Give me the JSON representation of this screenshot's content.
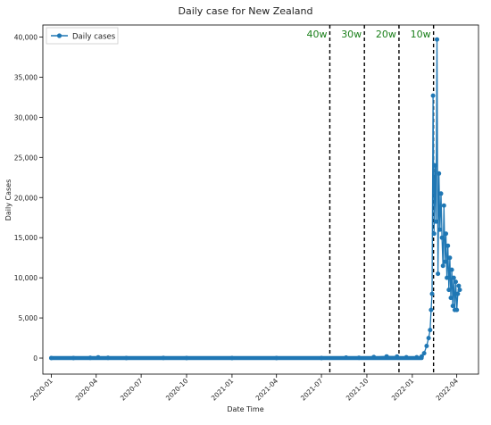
{
  "chart_data": {
    "type": "line",
    "title": "Daily case for New Zealand",
    "xlabel": "Date Time",
    "ylabel": "Daily Cases",
    "x_axis": {
      "type": "date",
      "range": [
        "2019-12-15",
        "2022-05-15"
      ],
      "ticks": [
        "2020-01",
        "2020-04",
        "2020-07",
        "2020-10",
        "2021-01",
        "2021-04",
        "2021-07",
        "2021-10",
        "2022-01",
        "2022-04"
      ]
    },
    "y_axis": {
      "range": [
        -2000,
        41500
      ],
      "ticks": [
        0,
        5000,
        10000,
        15000,
        20000,
        25000,
        30000,
        35000,
        40000
      ],
      "tick_labels": [
        "0",
        "5,000",
        "10,000",
        "15,000",
        "20,000",
        "25,000",
        "30,000",
        "35,000",
        "40,000"
      ]
    },
    "grid": false,
    "legend": {
      "placement": "top-left",
      "entries": [
        "Daily cases"
      ]
    },
    "series": [
      {
        "name": "Daily cases",
        "color": "#1f77b4",
        "marker": "circle",
        "points": [
          [
            "2020-01-01",
            0
          ],
          [
            "2020-02-15",
            0
          ],
          [
            "2020-03-20",
            20
          ],
          [
            "2020-04-05",
            90
          ],
          [
            "2020-04-25",
            20
          ],
          [
            "2020-06-01",
            0
          ],
          [
            "2020-08-15",
            10
          ],
          [
            "2020-10-01",
            5
          ],
          [
            "2021-01-01",
            5
          ],
          [
            "2021-04-01",
            5
          ],
          [
            "2021-07-01",
            5
          ],
          [
            "2021-08-20",
            60
          ],
          [
            "2021-09-15",
            40
          ],
          [
            "2021-10-15",
            120
          ],
          [
            "2021-11-10",
            200
          ],
          [
            "2021-12-01",
            180
          ],
          [
            "2021-12-20",
            100
          ],
          [
            "2022-01-10",
            100
          ],
          [
            "2022-01-20",
            200
          ],
          [
            "2022-01-25",
            600
          ],
          [
            "2022-01-30",
            1500
          ],
          [
            "2022-02-03",
            2500
          ],
          [
            "2022-02-06",
            3500
          ],
          [
            "2022-02-08",
            6000
          ],
          [
            "2022-02-10",
            8000
          ],
          [
            "2022-02-12",
            32700
          ],
          [
            "2022-02-14",
            15500
          ],
          [
            "2022-02-16",
            24000
          ],
          [
            "2022-02-18",
            17000
          ],
          [
            "2022-02-20",
            39700
          ],
          [
            "2022-02-22",
            10500
          ],
          [
            "2022-02-24",
            23000
          ],
          [
            "2022-02-26",
            16000
          ],
          [
            "2022-02-28",
            20500
          ],
          [
            "2022-03-02",
            15000
          ],
          [
            "2022-03-04",
            11500
          ],
          [
            "2022-03-06",
            19000
          ],
          [
            "2022-03-08",
            12000
          ],
          [
            "2022-03-10",
            15500
          ],
          [
            "2022-03-12",
            10000
          ],
          [
            "2022-03-14",
            14000
          ],
          [
            "2022-03-16",
            8500
          ],
          [
            "2022-03-18",
            12500
          ],
          [
            "2022-03-20",
            7500
          ],
          [
            "2022-03-22",
            11000
          ],
          [
            "2022-03-24",
            6500
          ],
          [
            "2022-03-26",
            10000
          ],
          [
            "2022-03-28",
            6000
          ],
          [
            "2022-03-30",
            9500
          ],
          [
            "2022-04-01",
            6000
          ],
          [
            "2022-04-03",
            8000
          ],
          [
            "2022-04-05",
            9000
          ],
          [
            "2022-04-07",
            8500
          ]
        ]
      }
    ],
    "annotations": {
      "color": "#1a7f1a",
      "vlines": [
        {
          "x": "2021-07-18",
          "label": "40w"
        },
        {
          "x": "2021-09-26",
          "label": "30w"
        },
        {
          "x": "2021-12-05",
          "label": "20w"
        },
        {
          "x": "2022-02-13",
          "label": "10w"
        }
      ]
    }
  }
}
